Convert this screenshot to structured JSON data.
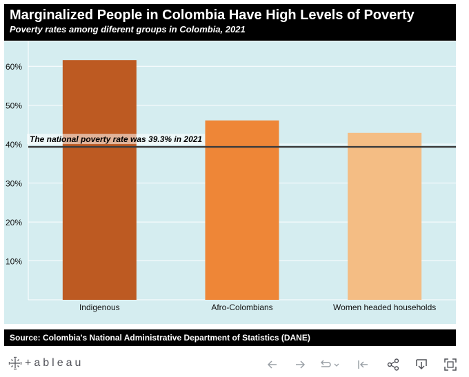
{
  "header": {
    "title": "Marginalized People in Colombia Have High Levels of Poverty",
    "subtitle": "Poverty rates among diferent groups in Colombia, 2021"
  },
  "chart_data": {
    "type": "bar",
    "categories": [
      "Indigenous",
      "Afro-Colombians",
      "Women headed households"
    ],
    "values": [
      61.6,
      46.1,
      42.9
    ],
    "colors": [
      "#bd5a22",
      "#ee8637",
      "#f4bd84"
    ],
    "ylim": [
      0,
      65
    ],
    "ytick_labels": [
      "10%",
      "20%",
      "30%",
      "40%",
      "50%",
      "60%"
    ],
    "ytick_values": [
      10,
      20,
      30,
      40,
      50,
      60
    ],
    "reference_line": {
      "value": 39.3,
      "label": "The national poverty rate was 39.3% in 2021"
    },
    "background": "#d5edf0",
    "grid": true
  },
  "source": "Source: Colombia's National Administrative Department of Statistics (DANE)",
  "toolbar": {
    "logo_text": "+ableau"
  }
}
